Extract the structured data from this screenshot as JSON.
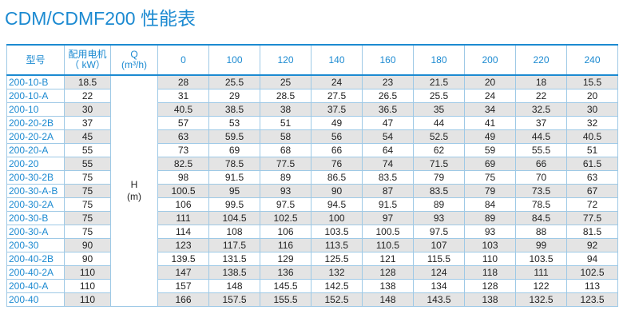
{
  "title": "CDM/CDMF200 性能表",
  "table": {
    "header": {
      "model": "型号",
      "motor_label": "配用电机",
      "motor_unit": "（ kW）",
      "q_label": "Q",
      "q_unit": "(m³/h)",
      "flows": [
        "0",
        "100",
        "120",
        "140",
        "160",
        "180",
        "200",
        "220",
        "240"
      ]
    },
    "h_label": "H",
    "h_unit": "(m)",
    "rows": [
      [
        "200-10-B",
        "18.5",
        [
          "28",
          "25.5",
          "25",
          "24",
          "23",
          "21.5",
          "20",
          "18",
          "15.5"
        ]
      ],
      [
        "200-10-A",
        "22",
        [
          "31",
          "29",
          "28.5",
          "27.5",
          "26.5",
          "25.5",
          "24",
          "22",
          "20"
        ]
      ],
      [
        "200-10",
        "30",
        [
          "40.5",
          "38.5",
          "38",
          "37.5",
          "36.5",
          "35",
          "34",
          "32.5",
          "30"
        ]
      ],
      [
        "200-20-2B",
        "37",
        [
          "57",
          "53",
          "51",
          "49",
          "47",
          "44",
          "41",
          "37",
          "32"
        ]
      ],
      [
        "200-20-2A",
        "45",
        [
          "63",
          "59.5",
          "58",
          "56",
          "54",
          "52.5",
          "49",
          "44.5",
          "40.5"
        ]
      ],
      [
        "200-20-A",
        "55",
        [
          "73",
          "69",
          "68",
          "66",
          "64",
          "62",
          "59",
          "55.5",
          "51"
        ]
      ],
      [
        "200-20",
        "55",
        [
          "82.5",
          "78.5",
          "77.5",
          "76",
          "74",
          "71.5",
          "69",
          "66",
          "61.5"
        ]
      ],
      [
        "200-30-2B",
        "75",
        [
          "98",
          "91.5",
          "89",
          "86.5",
          "83.5",
          "79",
          "75",
          "70",
          "63"
        ]
      ],
      [
        "200-30-A-B",
        "75",
        [
          "100.5",
          "95",
          "93",
          "90",
          "87",
          "83.5",
          "79",
          "73.5",
          "67"
        ]
      ],
      [
        "200-30-2A",
        "75",
        [
          "106",
          "99.5",
          "97.5",
          "94.5",
          "91.5",
          "89",
          "84",
          "78.5",
          "72"
        ]
      ],
      [
        "200-30-B",
        "75",
        [
          "111",
          "104.5",
          "102.5",
          "100",
          "97",
          "93",
          "89",
          "84.5",
          "77.5"
        ]
      ],
      [
        "200-30-A",
        "75",
        [
          "114",
          "108",
          "106",
          "103.5",
          "100.5",
          "97.5",
          "93",
          "88",
          "81.5"
        ]
      ],
      [
        "200-30",
        "90",
        [
          "123",
          "117.5",
          "116",
          "113.5",
          "110.5",
          "107",
          "103",
          "99",
          "92"
        ]
      ],
      [
        "200-40-2B",
        "90",
        [
          "139.5",
          "131.5",
          "129",
          "125.5",
          "121",
          "115.5",
          "110",
          "103.5",
          "94"
        ]
      ],
      [
        "200-40-2A",
        "110",
        [
          "147",
          "138.5",
          "136",
          "132",
          "128",
          "124",
          "118",
          "111",
          "102.5"
        ]
      ],
      [
        "200-40-A",
        "110",
        [
          "157",
          "148",
          "145.5",
          "142.5",
          "138",
          "134",
          "128",
          "122",
          "113"
        ]
      ],
      [
        "200-40",
        "110",
        [
          "166",
          "157.5",
          "155.5",
          "152.5",
          "148",
          "143.5",
          "138",
          "132.5",
          "123.5"
        ]
      ]
    ]
  }
}
